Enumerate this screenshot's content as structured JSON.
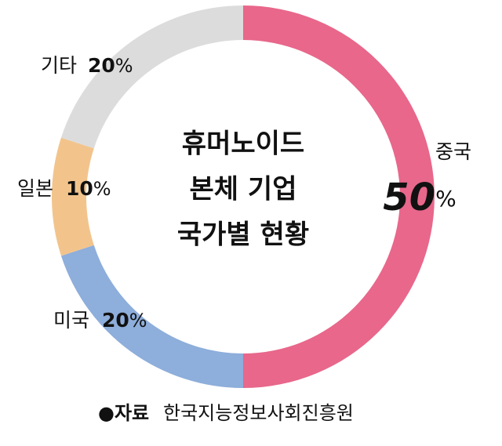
{
  "chart_data": {
    "type": "donut",
    "title": [
      "휴머노이드",
      "본체 기업",
      "국가별 현황"
    ],
    "categories": [
      "중국",
      "미국",
      "일본",
      "기타"
    ],
    "values": [
      50,
      20,
      10,
      20
    ],
    "value_labels": [
      "50%",
      "20%",
      "10%",
      "20%"
    ],
    "colors": [
      "#e8678b",
      "#8eaedb",
      "#f2c48c",
      "#dcdcdc"
    ],
    "source_label": "●자료",
    "source": "한국지능정보사회진흥원"
  }
}
